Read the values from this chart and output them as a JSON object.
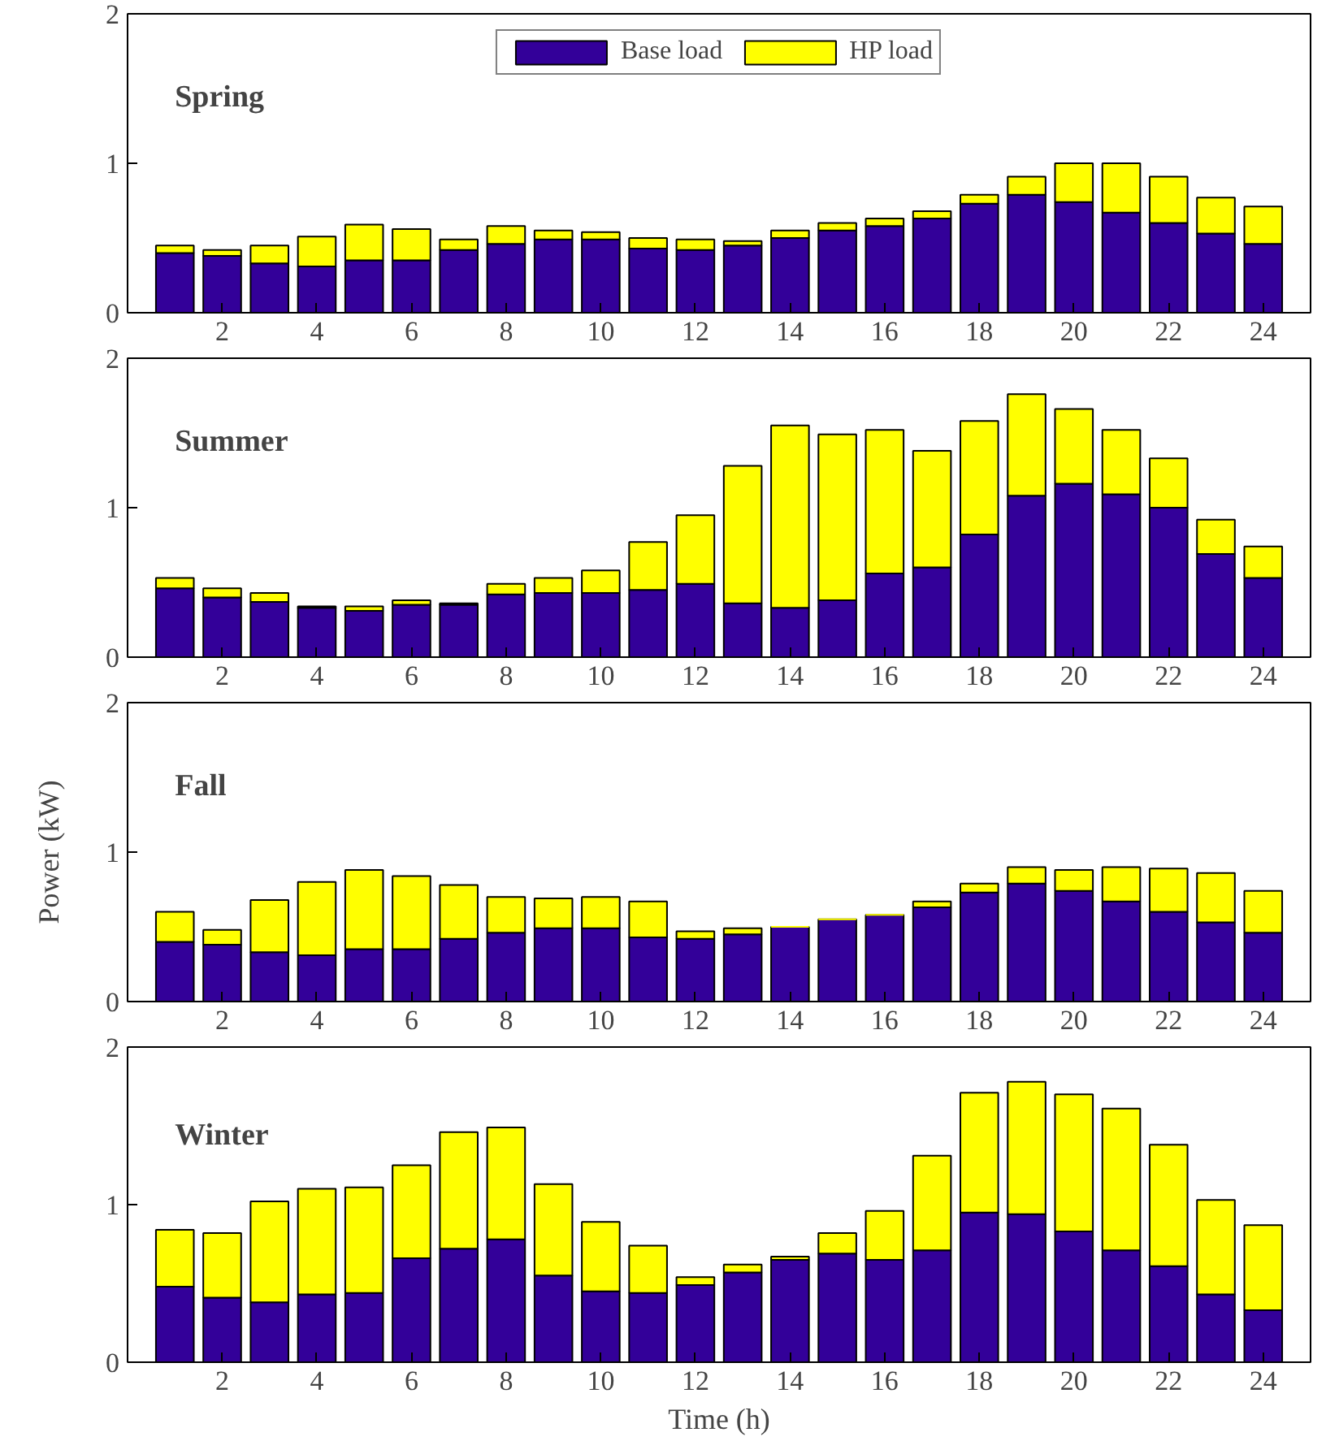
{
  "chart_data": [
    {
      "type": "bar",
      "title": "Spring",
      "stacked": true,
      "legend": "top",
      "grid": false,
      "x": [
        1,
        2,
        3,
        4,
        5,
        6,
        7,
        8,
        9,
        10,
        11,
        12,
        13,
        14,
        15,
        16,
        17,
        18,
        19,
        20,
        21,
        22,
        23,
        24
      ],
      "xlim": [
        0,
        25
      ],
      "xticks": [
        2,
        4,
        6,
        8,
        10,
        12,
        14,
        16,
        18,
        20,
        22,
        24
      ],
      "ylim": [
        0,
        2
      ],
      "yticks": [
        0,
        1,
        2
      ],
      "series": [
        {
          "name": "Base load",
          "color": "#330099",
          "values": [
            0.4,
            0.38,
            0.33,
            0.31,
            0.35,
            0.35,
            0.42,
            0.46,
            0.49,
            0.49,
            0.43,
            0.42,
            0.45,
            0.5,
            0.55,
            0.58,
            0.63,
            0.73,
            0.79,
            0.74,
            0.67,
            0.6,
            0.53,
            0.46
          ]
        },
        {
          "name": "HP load",
          "color": "#ffff00",
          "values": [
            0.05,
            0.04,
            0.12,
            0.2,
            0.24,
            0.21,
            0.07,
            0.12,
            0.06,
            0.05,
            0.07,
            0.07,
            0.03,
            0.05,
            0.05,
            0.05,
            0.05,
            0.06,
            0.12,
            0.26,
            0.33,
            0.31,
            0.24,
            0.25
          ]
        }
      ]
    },
    {
      "type": "bar",
      "title": "Summer",
      "stacked": true,
      "grid": false,
      "x": [
        1,
        2,
        3,
        4,
        5,
        6,
        7,
        8,
        9,
        10,
        11,
        12,
        13,
        14,
        15,
        16,
        17,
        18,
        19,
        20,
        21,
        22,
        23,
        24
      ],
      "xlim": [
        0,
        25
      ],
      "xticks": [
        2,
        4,
        6,
        8,
        10,
        12,
        14,
        16,
        18,
        20,
        22,
        24
      ],
      "ylim": [
        0,
        2
      ],
      "yticks": [
        0,
        1,
        2
      ],
      "series": [
        {
          "color": "#330099",
          "values": [
            0.46,
            0.4,
            0.37,
            0.33,
            0.31,
            0.35,
            0.35,
            0.42,
            0.43,
            0.43,
            0.45,
            0.49,
            0.36,
            0.33,
            0.38,
            0.56,
            0.6,
            0.82,
            1.08,
            1.16,
            1.09,
            1.0,
            0.69,
            0.53
          ]
        },
        {
          "color": "#ffff00",
          "values": [
            0.07,
            0.06,
            0.06,
            0.01,
            0.03,
            0.03,
            0.01,
            0.07,
            0.1,
            0.15,
            0.32,
            0.46,
            0.92,
            1.22,
            1.11,
            0.96,
            0.78,
            0.76,
            0.68,
            0.5,
            0.43,
            0.33,
            0.23,
            0.21
          ]
        }
      ]
    },
    {
      "type": "bar",
      "title": "Fall",
      "stacked": true,
      "grid": false,
      "ylabel": "Power (kW)",
      "x": [
        1,
        2,
        3,
        4,
        5,
        6,
        7,
        8,
        9,
        10,
        11,
        12,
        13,
        14,
        15,
        16,
        17,
        18,
        19,
        20,
        21,
        22,
        23,
        24
      ],
      "xlim": [
        0,
        25
      ],
      "xticks": [
        2,
        4,
        6,
        8,
        10,
        12,
        14,
        16,
        18,
        20,
        22,
        24
      ],
      "ylim": [
        0,
        2
      ],
      "yticks": [
        0,
        1,
        2
      ],
      "series": [
        {
          "color": "#330099",
          "values": [
            0.4,
            0.38,
            0.33,
            0.31,
            0.35,
            0.35,
            0.42,
            0.46,
            0.49,
            0.49,
            0.43,
            0.42,
            0.45,
            0.5,
            0.55,
            0.58,
            0.63,
            0.73,
            0.79,
            0.74,
            0.67,
            0.6,
            0.53,
            0.46
          ]
        },
        {
          "color": "#ffff00",
          "values": [
            0.2,
            0.1,
            0.35,
            0.49,
            0.53,
            0.49,
            0.36,
            0.24,
            0.2,
            0.21,
            0.24,
            0.05,
            0.04,
            0,
            0,
            0,
            0.04,
            0.06,
            0.11,
            0.14,
            0.23,
            0.29,
            0.33,
            0.28
          ]
        }
      ]
    },
    {
      "type": "bar",
      "title": "Winter",
      "stacked": true,
      "grid": false,
      "xlabel": "Time (h)",
      "x": [
        1,
        2,
        3,
        4,
        5,
        6,
        7,
        8,
        9,
        10,
        11,
        12,
        13,
        14,
        15,
        16,
        17,
        18,
        19,
        20,
        21,
        22,
        23,
        24
      ],
      "xlim": [
        0,
        25
      ],
      "xticks": [
        2,
        4,
        6,
        8,
        10,
        12,
        14,
        16,
        18,
        20,
        22,
        24
      ],
      "ylim": [
        0,
        2
      ],
      "yticks": [
        0,
        1,
        2
      ],
      "series": [
        {
          "color": "#330099",
          "values": [
            0.48,
            0.41,
            0.38,
            0.43,
            0.44,
            0.66,
            0.72,
            0.78,
            0.55,
            0.45,
            0.44,
            0.49,
            0.57,
            0.65,
            0.69,
            0.65,
            0.71,
            0.95,
            0.94,
            0.83,
            0.71,
            0.61,
            0.43,
            0.33
          ]
        },
        {
          "color": "#ffff00",
          "values": [
            0.36,
            0.41,
            0.64,
            0.67,
            0.67,
            0.59,
            0.74,
            0.71,
            0.58,
            0.44,
            0.3,
            0.05,
            0.05,
            0.02,
            0.13,
            0.31,
            0.6,
            0.76,
            0.84,
            0.87,
            0.9,
            0.77,
            0.6,
            0.54
          ]
        }
      ]
    }
  ]
}
